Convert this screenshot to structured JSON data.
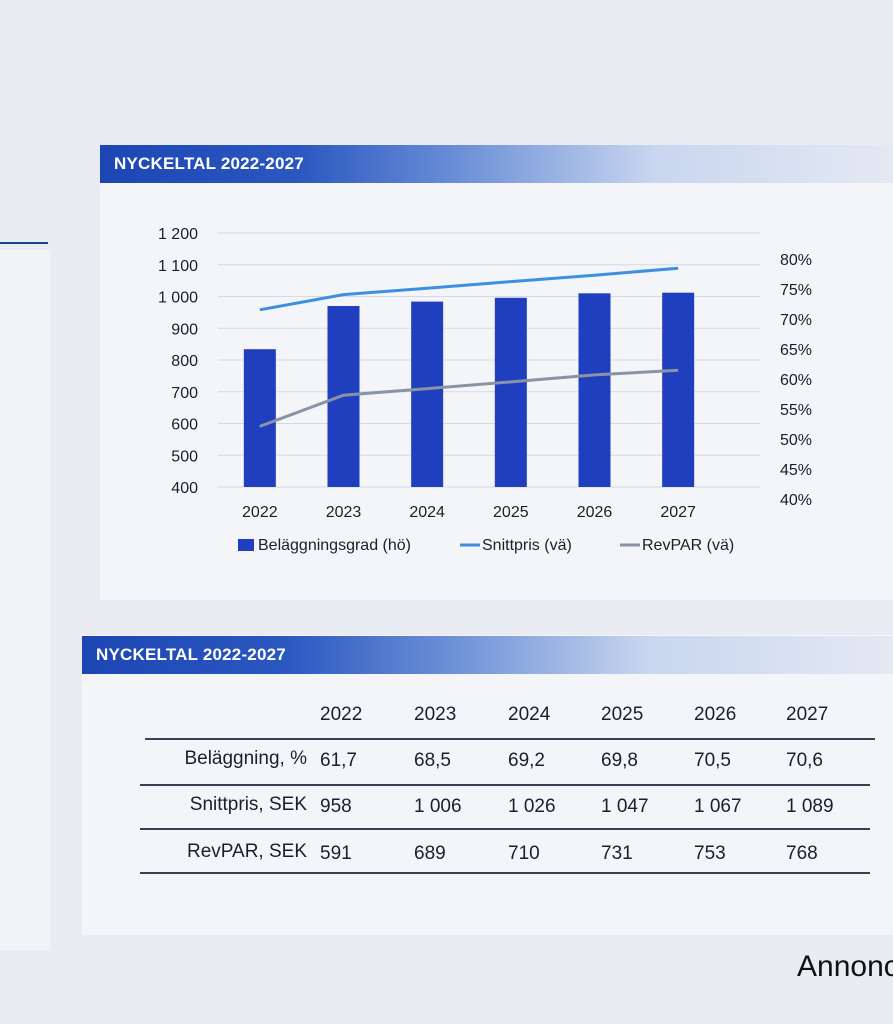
{
  "chart_section": {
    "title": "NYCKELTAL 2022-2027"
  },
  "table_section": {
    "title": "NYCKELTAL 2022-2027"
  },
  "chart_data": {
    "type": "bar",
    "title": "NYCKELTAL 2022-2027",
    "categories": [
      "2022",
      "2023",
      "2024",
      "2025",
      "2026",
      "2027"
    ],
    "left_axis": {
      "ticks": [
        "1 200",
        "1 100",
        "1 000",
        "900",
        "800",
        "700",
        "600",
        "500",
        "400"
      ],
      "ylim": [
        400,
        1200
      ]
    },
    "right_axis": {
      "ticks": [
        "80%",
        "75%",
        "70%",
        "65%",
        "60%",
        "55%",
        "50%",
        "45%",
        "40%"
      ],
      "ylim": [
        40,
        80
      ]
    },
    "series": [
      {
        "name": "Beläggningsgrad (hö)",
        "type": "bar",
        "axis": "right",
        "color": "#1f3fbf",
        "values": [
          61.7,
          68.5,
          69.2,
          69.8,
          70.5,
          70.6
        ]
      },
      {
        "name": "Snittpris (vä)",
        "type": "line",
        "axis": "left",
        "color": "#3d8fe0",
        "values": [
          958,
          1006,
          1026,
          1047,
          1067,
          1089
        ]
      },
      {
        "name": "RevPAR (vä)",
        "type": "line",
        "axis": "left",
        "color": "#8a93a6",
        "values": [
          591,
          689,
          710,
          731,
          753,
          768
        ]
      }
    ],
    "grid": true,
    "legend_position": "bottom"
  },
  "table": {
    "columns": [
      "2022",
      "2023",
      "2024",
      "2025",
      "2026",
      "2027"
    ],
    "rows": [
      {
        "label": "Beläggning, %",
        "values": [
          "61,7",
          "68,5",
          "69,2",
          "69,8",
          "70,5",
          "70,6"
        ]
      },
      {
        "label": "Snittpris, SEK",
        "values": [
          "958",
          "1 006",
          "1 026",
          "1 047",
          "1 067",
          "1 089"
        ]
      },
      {
        "label": "RevPAR, SEK",
        "values": [
          "591",
          "689",
          "710",
          "731",
          "753",
          "768"
        ]
      }
    ]
  },
  "footer": {
    "text": "Annonc"
  }
}
